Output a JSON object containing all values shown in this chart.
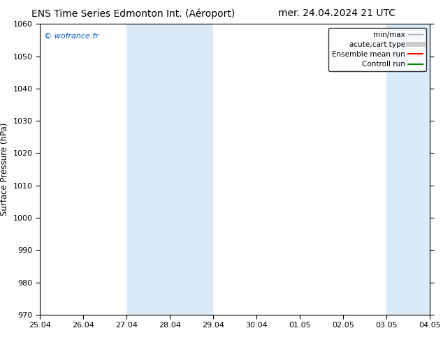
{
  "title_left": "ENS Time Series Edmonton Int. (Aéroport)",
  "title_right": "mer. 24.04.2024 21 UTC",
  "ylabel": "Surface Pressure (hPa)",
  "ylim": [
    970,
    1060
  ],
  "yticks": [
    970,
    980,
    990,
    1000,
    1010,
    1020,
    1030,
    1040,
    1050,
    1060
  ],
  "xlim_start": 0,
  "xlim_end": 9,
  "xtick_labels": [
    "25.04",
    "26.04",
    "27.04",
    "28.04",
    "29.04",
    "30.04",
    "01.05",
    "02.05",
    "03.05",
    "04.05"
  ],
  "xtick_positions": [
    0,
    1,
    2,
    3,
    4,
    5,
    6,
    7,
    8,
    9
  ],
  "shaded_bands": [
    {
      "xmin": 2.0,
      "xmax": 4.0,
      "color": "#daeaf7"
    },
    {
      "xmin": 8.0,
      "xmax": 9.5,
      "color": "#daeaf7"
    }
  ],
  "copyright_text": "© wofrance.fr",
  "copyright_color": "#0055cc",
  "legend_entries": [
    {
      "label": "min/max",
      "color": "#aaaaaa",
      "linestyle": "-",
      "linewidth": 1.0
    },
    {
      "label": "acute;cart type",
      "color": "#cccccc",
      "linestyle": "-",
      "linewidth": 5
    },
    {
      "label": "Ensemble mean run",
      "color": "#ff0000",
      "linestyle": "-",
      "linewidth": 1.5
    },
    {
      "label": "Controll run",
      "color": "#008800",
      "linestyle": "-",
      "linewidth": 1.5
    }
  ],
  "background_color": "#ffffff",
  "plot_background": "#ffffff",
  "title_fontsize": 10,
  "axis_label_fontsize": 8.5,
  "tick_fontsize": 8,
  "legend_fontsize": 7.5
}
